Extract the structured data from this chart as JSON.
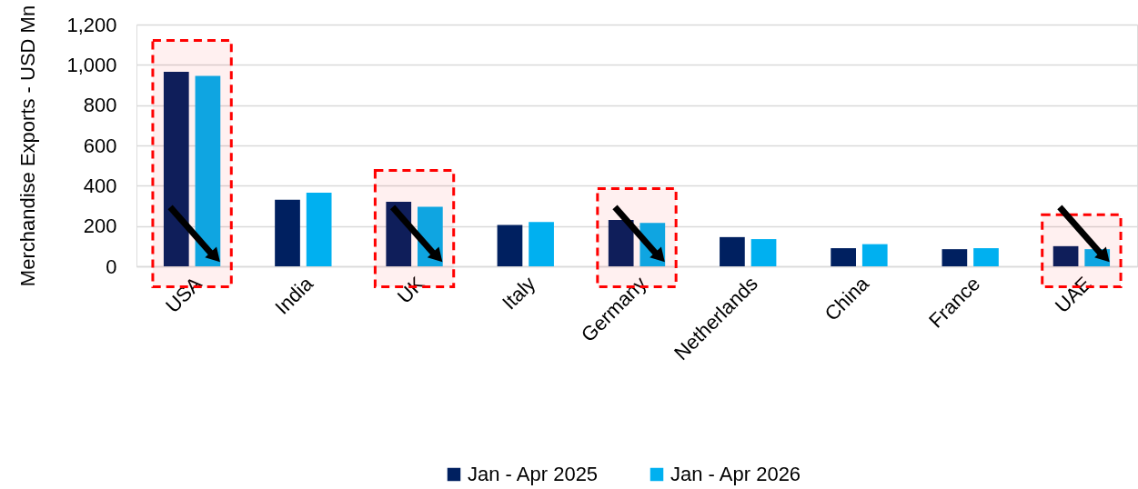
{
  "chart_data": {
    "type": "bar",
    "ylabel": "Merchandise Exports - USD Mn",
    "categories": [
      "USA",
      "India",
      "UK",
      "Italy",
      "Germany",
      "Netherlands",
      "China",
      "France",
      "UAE"
    ],
    "series": [
      {
        "name": "Jan - Apr 2025",
        "color": "#002060",
        "values": [
          965,
          330,
          320,
          205,
          230,
          145,
          90,
          85,
          100
        ]
      },
      {
        "name": "Jan - Apr 2026",
        "color": "#00b0f0",
        "values": [
          945,
          365,
          295,
          220,
          215,
          135,
          110,
          90,
          85
        ]
      }
    ],
    "ylim": [
      0,
      1200
    ],
    "yticks": [
      0,
      200,
      400,
      600,
      800,
      {
        "value": 1000,
        "label": "1,000"
      },
      {
        "value": 1200,
        "label": "1,200"
      }
    ],
    "grid": "y",
    "legend": "bottom",
    "bands": [
      {
        "axis": "x",
        "from": "USA",
        "to": "USA",
        "color": "#ff0000"
      },
      {
        "axis": "x",
        "from": "UK",
        "to": "UK",
        "color": "#ff0000"
      },
      {
        "axis": "x",
        "from": "Germany",
        "to": "Germany",
        "color": "#ff0000"
      },
      {
        "axis": "x",
        "from": "UAE",
        "to": "UAE",
        "color": "#ff0000"
      }
    ]
  }
}
